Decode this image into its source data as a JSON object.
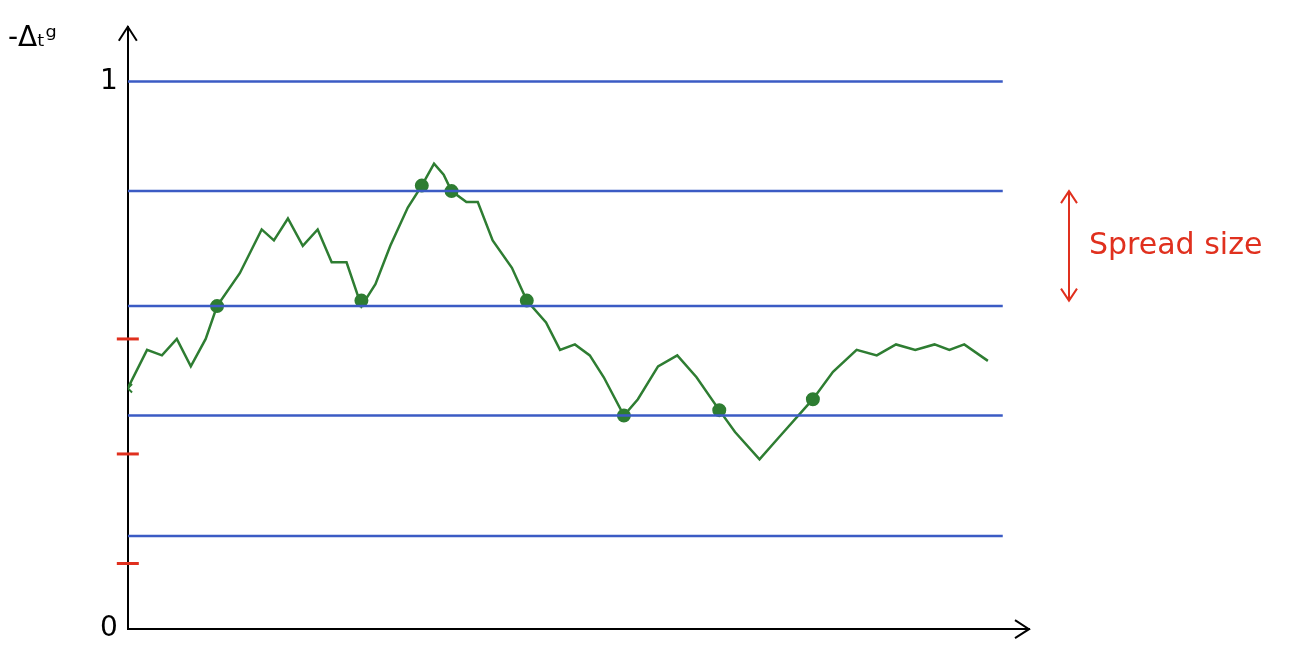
{
  "chart_data": {
    "type": "line",
    "y_label": "-Δₜᵍ",
    "annotation": {
      "text": "Spread size",
      "y_from": 0.6,
      "y_to": 0.8,
      "color": "#e0301e"
    },
    "xlim": [
      0,
      10.3
    ],
    "ylim": [
      0,
      1.1
    ],
    "yticks": [
      0,
      1
    ],
    "tick_labels": "y",
    "grid": false,
    "series": [
      {
        "color": "#3b5bc4",
        "marker": "none",
        "x": [
          0,
          10
        ],
        "values": [
          1.0,
          1.0
        ]
      },
      {
        "color": "#3b5bc4",
        "marker": "none",
        "x": [
          0,
          10
        ],
        "values": [
          0.8,
          0.8
        ]
      },
      {
        "color": "#3b5bc4",
        "marker": "none",
        "x": [
          0,
          10
        ],
        "values": [
          0.59,
          0.59
        ]
      },
      {
        "color": "#3b5bc4",
        "marker": "none",
        "x": [
          0,
          10
        ],
        "values": [
          0.39,
          0.39
        ]
      },
      {
        "color": "#3b5bc4",
        "marker": "none",
        "x": [
          0,
          10
        ],
        "values": [
          0.17,
          0.17
        ]
      },
      {
        "color": "#2e7d32",
        "marker": "none",
        "x": [
          0,
          0.22,
          0.39,
          0.56,
          0.72,
          0.89,
          1.02,
          1.28,
          1.53,
          1.67,
          1.83,
          2.0,
          2.17,
          2.33,
          2.5,
          2.67,
          2.83,
          3.0,
          3.2,
          3.36,
          3.5,
          3.61,
          3.7,
          3.87,
          4.0,
          4.17,
          4.39,
          4.56,
          4.78,
          4.94,
          5.11,
          5.28,
          5.44,
          5.67,
          5.83,
          6.06,
          6.28,
          6.5,
          6.76,
          6.94,
          7.22,
          7.44,
          7.83,
          8.06,
          8.33,
          8.56,
          8.78,
          9.0,
          9.22,
          9.39,
          9.56,
          9.83
        ],
        "values": [
          0.44,
          0.51,
          0.5,
          0.53,
          0.48,
          0.53,
          0.59,
          0.65,
          0.73,
          0.71,
          0.75,
          0.7,
          0.73,
          0.67,
          0.67,
          0.59,
          0.63,
          0.7,
          0.77,
          0.81,
          0.85,
          0.83,
          0.8,
          0.78,
          0.78,
          0.71,
          0.66,
          0.6,
          0.56,
          0.51,
          0.52,
          0.5,
          0.46,
          0.39,
          0.42,
          0.48,
          0.5,
          0.46,
          0.4,
          0.36,
          0.31,
          0.35,
          0.42,
          0.47,
          0.51,
          0.5,
          0.52,
          0.51,
          0.52,
          0.51,
          0.52,
          0.49
        ]
      },
      {
        "type": "scatter",
        "color": "#2e7d32",
        "marker": "circle",
        "x": [
          1.02,
          2.67,
          3.36,
          3.7,
          4.56,
          5.67,
          6.76,
          7.83
        ],
        "values": [
          0.59,
          0.6,
          0.81,
          0.8,
          0.6,
          0.39,
          0.4,
          0.42
        ]
      },
      {
        "type": "scatter",
        "color": "#2e7d32",
        "marker": "cross",
        "x": [
          0
        ],
        "values": [
          0.44
        ]
      },
      {
        "type": "scatter",
        "color": "#e0301e",
        "marker": "line",
        "x": [
          0,
          0,
          0
        ],
        "values": [
          0.53,
          0.32,
          0.12
        ]
      }
    ]
  }
}
